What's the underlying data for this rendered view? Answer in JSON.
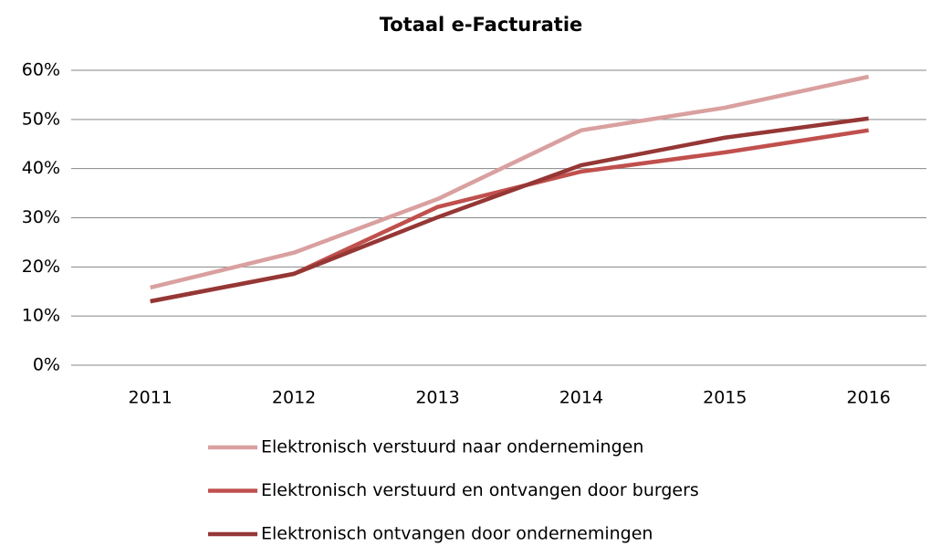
{
  "chart_data": {
    "type": "line",
    "title": "Totaal e-Facturatie",
    "categories": [
      "2011",
      "2012",
      "2013",
      "2014",
      "2015",
      "2016"
    ],
    "series": [
      {
        "name": "Elektronisch verstuurd naar ondernemingen",
        "color": "#d9a09f",
        "values": [
          15.8,
          22.9,
          33.8,
          47.8,
          52.4,
          58.7
        ]
      },
      {
        "name": "Elektronisch verstuurd en ontvangen door burgers",
        "color": "#c0504d",
        "values": [
          13,
          18.6,
          32.2,
          39.4,
          43.3,
          47.8
        ]
      },
      {
        "name": "Elektronisch ontvangen door ondernemingen",
        "color": "#953735",
        "values": [
          13,
          18.6,
          30.1,
          40.7,
          46.3,
          50.2
        ]
      }
    ],
    "ylim": [
      0,
      60
    ],
    "yticks": [
      {
        "value": 0,
        "label": "0%"
      },
      {
        "value": 10,
        "label": "10%"
      },
      {
        "value": 20,
        "label": "20%"
      },
      {
        "value": 30,
        "label": "30%"
      },
      {
        "value": 40,
        "label": "40%"
      },
      {
        "value": 50,
        "label": "50%"
      },
      {
        "value": 60,
        "label": "60%"
      }
    ],
    "grid": true
  }
}
